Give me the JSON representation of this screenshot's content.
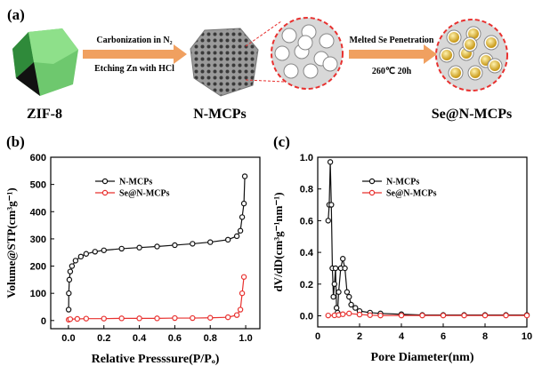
{
  "schematic": {
    "label": "(a)",
    "step1": [
      "Carbonization in N₂",
      "Etching Zn with HCl"
    ],
    "step2": [
      "Melted Se Penetration",
      "260℃ 20h"
    ],
    "materials": [
      "ZIF-8",
      "N-MCPs",
      "Se@N-MCPs"
    ]
  },
  "chart_data": [
    {
      "type": "line",
      "panel_label": "(b)",
      "x_label": "Relative Presssure(P/Pₒ)",
      "y_label": "Volume@STP(cm³g⁻¹)",
      "xlim": [
        -0.1,
        1.08
      ],
      "ylim": [
        -30,
        600
      ],
      "xticks": [
        {
          "value": 0,
          "label": "0.0"
        },
        0.2,
        0.4,
        0.6,
        0.8,
        {
          "value": 1,
          "label": "1.0"
        }
      ],
      "yticks": [
        0,
        100,
        200,
        300,
        400,
        500,
        600
      ],
      "grid": false,
      "legend": "upper left",
      "series": [
        {
          "name": "N-MCPs",
          "color": "#111111",
          "x": [
            0.001,
            0.002,
            0.005,
            0.01,
            0.02,
            0.04,
            0.07,
            0.1,
            0.15,
            0.2,
            0.3,
            0.4,
            0.5,
            0.6,
            0.7,
            0.8,
            0.9,
            0.95,
            0.97,
            0.98,
            0.99,
            0.995
          ],
          "values": [
            40,
            100,
            150,
            180,
            200,
            220,
            235,
            245,
            253,
            258,
            264,
            268,
            272,
            277,
            282,
            288,
            297,
            310,
            330,
            380,
            430,
            530
          ]
        },
        {
          "name": "Se@N-MCPs",
          "color": "#e8312f",
          "x": [
            0.001,
            0.01,
            0.05,
            0.1,
            0.2,
            0.3,
            0.4,
            0.5,
            0.6,
            0.7,
            0.8,
            0.9,
            0.95,
            0.97,
            0.98,
            0.99
          ],
          "values": [
            3,
            5,
            6,
            7,
            7,
            8,
            8,
            8,
            9,
            9,
            10,
            12,
            20,
            40,
            100,
            160
          ]
        }
      ]
    },
    {
      "type": "line",
      "panel_label": "(c)",
      "x_label": "Pore Diameter(nm)",
      "y_label": "dV/dD(cm³g⁻¹nm⁻¹)",
      "xlim": [
        0,
        10
      ],
      "ylim": [
        -0.07,
        1.0
      ],
      "xticks": [
        0,
        2,
        4,
        6,
        8,
        10
      ],
      "yticks": [
        {
          "value": 0,
          "label": "0.0"
        },
        0.2,
        0.4,
        0.6,
        0.8,
        {
          "value": 1,
          "label": "1.0"
        }
      ],
      "grid": false,
      "legend": "upper left",
      "series": [
        {
          "name": "N-MCPs",
          "color": "#111111",
          "x": [
            0.5,
            0.55,
            0.6,
            0.65,
            0.7,
            0.75,
            0.8,
            0.85,
            0.9,
            0.95,
            1.0,
            1.1,
            1.2,
            1.3,
            1.4,
            1.5,
            1.6,
            1.8,
            2.0,
            2.5,
            3,
            4,
            5,
            6,
            7,
            8,
            9,
            10
          ],
          "values": [
            0.6,
            0.7,
            0.97,
            0.7,
            0.3,
            0.12,
            0.2,
            0.3,
            0.05,
            0.02,
            0.15,
            0.3,
            0.36,
            0.3,
            0.15,
            0.12,
            0.07,
            0.05,
            0.03,
            0.02,
            0.015,
            0.01,
            0.005,
            0.005,
            0.005,
            0.005,
            0.005,
            0.005
          ]
        },
        {
          "name": "Se@N-MCPs",
          "color": "#e8312f",
          "x": [
            0.5,
            0.8,
            1.0,
            1.2,
            1.5,
            2.0,
            2.5,
            3,
            4,
            5,
            6,
            7,
            8,
            9,
            10
          ],
          "values": [
            0.002,
            0.003,
            0.005,
            0.01,
            0.015,
            0.008,
            0.004,
            0.002,
            0.002,
            0.002,
            0.002,
            0.002,
            0.002,
            0.002,
            0.002
          ]
        }
      ]
    }
  ]
}
